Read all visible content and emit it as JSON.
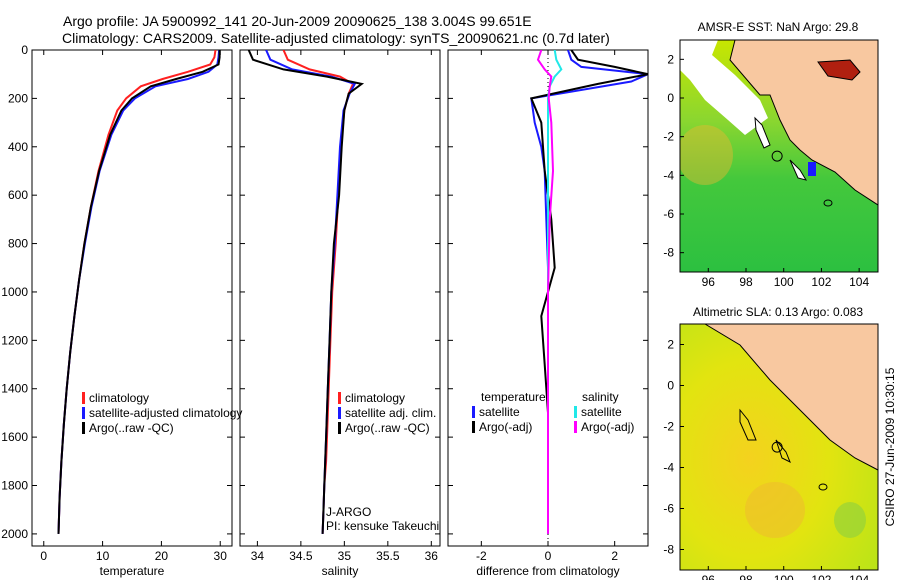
{
  "header": {
    "line1": "Argo profile: JA 5900992_141 20-Jun-2009 20090625_138 3.004S 99.651E",
    "line2": "Climatology: CARS2009. Satellite-adjusted climatology: synTS_20090621.nc (0.7d later)"
  },
  "side_label": "CSIRO 27-Jun-2009 10:30:15",
  "colors": {
    "climatology": "#ff2020",
    "satellite": "#1a1aff",
    "argo": "#000000",
    "sat_diff_s": "#20e8e8",
    "argo_diff_s": "#ff00ff",
    "land": "#f8c8a0",
    "coast": "#000000"
  },
  "chart_data": [
    {
      "id": "temperature",
      "type": "line",
      "xlabel": "temperature",
      "ylabel": "",
      "xlim": [
        -2,
        32
      ],
      "ylim": [
        2050,
        0
      ],
      "xticks": [
        "0",
        "10",
        "20",
        "30"
      ],
      "xtick_values": [
        0,
        10,
        20,
        30
      ],
      "yticks": [
        "0",
        "200",
        "400",
        "600",
        "800",
        "1000",
        "1200",
        "1400",
        "1600",
        "1800",
        "2000"
      ],
      "ytick_values": [
        0,
        200,
        400,
        600,
        800,
        1000,
        1200,
        1400,
        1600,
        1800,
        2000
      ],
      "legend": [
        "climatology",
        "satellite-adjusted climatology",
        "Argo(..raw -QC)"
      ],
      "series": [
        {
          "name": "climatology",
          "color": "#ff2020",
          "x": [
            29.2,
            29.0,
            28.3,
            24.5,
            20.2,
            16.5,
            14.0,
            12.5,
            11.0,
            9.3,
            8.0,
            6.9,
            6.0,
            5.2,
            4.5,
            3.9,
            3.4,
            3.0,
            2.7,
            2.5
          ],
          "y": [
            0,
            30,
            60,
            90,
            120,
            150,
            200,
            250,
            350,
            500,
            650,
            800,
            950,
            1100,
            1250,
            1400,
            1550,
            1700,
            1850,
            2000
          ]
        },
        {
          "name": "satellite-adjusted climatology",
          "color": "#1a1aff",
          "x": [
            29.8,
            29.7,
            29.5,
            28.0,
            24.5,
            19.0,
            15.5,
            13.5,
            11.5,
            9.5,
            8.1,
            7.0,
            6.0,
            5.2,
            4.5,
            3.9,
            3.4,
            3.0,
            2.7,
            2.5
          ],
          "y": [
            0,
            30,
            60,
            90,
            120,
            150,
            200,
            250,
            350,
            500,
            650,
            800,
            950,
            1100,
            1250,
            1400,
            1550,
            1700,
            1850,
            2000
          ]
        },
        {
          "name": "Argo(..raw -QC)",
          "color": "#000000",
          "x": [
            29.9,
            29.9,
            29.7,
            27.0,
            22.5,
            18.2,
            15.0,
            13.2,
            11.3,
            9.4,
            8.0,
            6.9,
            6.0,
            5.2,
            4.5,
            3.9,
            3.4,
            3.0,
            2.7,
            2.5
          ],
          "y": [
            0,
            30,
            60,
            90,
            120,
            150,
            200,
            250,
            350,
            500,
            650,
            800,
            950,
            1100,
            1250,
            1400,
            1550,
            1700,
            1850,
            2000
          ]
        }
      ]
    },
    {
      "id": "salinity",
      "type": "line",
      "xlabel": "salinity",
      "xlim": [
        33.8,
        36.1
      ],
      "ylim": [
        2050,
        0
      ],
      "xticks": [
        "34",
        "34.5",
        "35",
        "35.5",
        "36"
      ],
      "xtick_values": [
        34,
        34.5,
        35,
        35.5,
        36
      ],
      "legend": [
        "climatology",
        "satellite adj. clim.",
        "Argo(..raw -QC)"
      ],
      "annotations": [
        "J-ARGO",
        "PI: kensuke Takeuchi"
      ],
      "series": [
        {
          "name": "climatology",
          "color": "#ff2020",
          "x": [
            34.3,
            34.35,
            34.6,
            34.95,
            35.1,
            35.05,
            35.0,
            34.96,
            34.93,
            34.9,
            34.86,
            34.84,
            34.82,
            34.8,
            34.79,
            34.77,
            34.76,
            34.75
          ],
          "y": [
            0,
            40,
            80,
            110,
            140,
            180,
            250,
            400,
            600,
            800,
            1000,
            1200,
            1400,
            1600,
            1700,
            1800,
            1900,
            2000
          ]
        },
        {
          "name": "satellite adj. clim.",
          "color": "#1a1aff",
          "x": [
            34.1,
            34.15,
            34.4,
            34.85,
            35.12,
            35.06,
            34.99,
            34.95,
            34.92,
            34.89,
            34.85,
            34.83,
            34.81,
            34.79,
            34.78,
            34.77,
            34.76,
            34.75
          ],
          "y": [
            0,
            40,
            80,
            110,
            140,
            180,
            250,
            400,
            600,
            800,
            1000,
            1200,
            1400,
            1600,
            1700,
            1800,
            1900,
            2000
          ]
        },
        {
          "name": "Argo(..raw -QC)",
          "color": "#000000",
          "x": [
            33.9,
            33.95,
            34.3,
            34.8,
            35.2,
            35.05,
            35.0,
            34.97,
            34.94,
            34.88,
            34.85,
            34.83,
            34.81,
            34.79,
            34.78,
            34.77,
            34.76,
            34.75
          ],
          "y": [
            0,
            40,
            80,
            110,
            140,
            180,
            250,
            400,
            600,
            800,
            1000,
            1200,
            1400,
            1600,
            1700,
            1800,
            1900,
            2000
          ]
        }
      ]
    },
    {
      "id": "difference",
      "type": "line",
      "xlabel": "difference from climatology",
      "xlim": [
        -3,
        3
      ],
      "ylim": [
        2050,
        0
      ],
      "xticks": [
        "-2",
        "0",
        "2"
      ],
      "xtick_values": [
        -2,
        0,
        2
      ],
      "legend_temperature_title": "temperature",
      "legend_salinity_title": "salinity",
      "legend_temperature": [
        "satellite",
        "Argo(-adj)"
      ],
      "legend_salinity": [
        "satellite",
        "Argo(-adj)"
      ],
      "series": [
        {
          "name": "temperature satellite",
          "color": "#1a1aff",
          "x": [
            0.6,
            0.7,
            1.0,
            3.0,
            2.5,
            -0.5,
            -0.4,
            -0.2,
            -0.1,
            -0.05,
            0,
            0,
            0,
            0,
            0,
            0
          ],
          "y": [
            0,
            40,
            70,
            100,
            130,
            200,
            300,
            400,
            500,
            700,
            900,
            1100,
            1300,
            1500,
            1800,
            2000
          ]
        },
        {
          "name": "temperature Argo(-adj)",
          "color": "#000000",
          "x": [
            0.7,
            0.9,
            2.0,
            3.0,
            1.5,
            -0.5,
            -0.2,
            -0.15,
            -0.1,
            0.1,
            0.2,
            -0.2,
            -0.1,
            0,
            0,
            0
          ],
          "y": [
            0,
            40,
            70,
            100,
            140,
            200,
            300,
            400,
            500,
            700,
            900,
            1100,
            1300,
            1500,
            1800,
            2000
          ]
        },
        {
          "name": "salinity satellite",
          "color": "#20e8e8",
          "x": [
            0.2,
            0.25,
            0.4,
            0.2,
            0.05,
            0,
            0,
            0,
            0,
            0,
            0,
            0,
            0
          ],
          "y": [
            0,
            40,
            80,
            110,
            150,
            200,
            300,
            500,
            700,
            1000,
            1300,
            1600,
            2000
          ]
        },
        {
          "name": "salinity Argo(-adj)",
          "color": "#ff00ff",
          "x": [
            -0.2,
            -0.3,
            -0.1,
            0.1,
            0.05,
            0.02,
            0.1,
            0.15,
            0.05,
            0,
            0,
            0,
            0
          ],
          "y": [
            0,
            40,
            80,
            110,
            150,
            200,
            300,
            500,
            700,
            1000,
            1300,
            1600,
            2000
          ]
        }
      ]
    },
    {
      "id": "sst_map",
      "type": "heatmap",
      "title": "AMSR-E SST: NaN Argo: 29.8",
      "xlim": [
        94.5,
        105
      ],
      "ylim": [
        -9,
        3
      ],
      "xticks": [
        "96",
        "98",
        "100",
        "102",
        "104"
      ],
      "xtick_values": [
        96,
        98,
        100,
        102,
        104
      ],
      "yticks": [
        "2",
        "0",
        "-2",
        "-4",
        "-6",
        "-8"
      ],
      "ytick_values": [
        2,
        0,
        -2,
        -4,
        -6,
        -8
      ],
      "argo_position": {
        "lon": 99.651,
        "lat": -3.004
      }
    },
    {
      "id": "sla_map",
      "type": "heatmap",
      "title": "Altimetric SLA: 0.13 Argo: 0.083",
      "xlim": [
        94.5,
        105
      ],
      "ylim": [
        -9,
        3
      ],
      "xticks": [
        "96",
        "98",
        "100",
        "102",
        "104"
      ],
      "xtick_values": [
        96,
        98,
        100,
        102,
        104
      ],
      "yticks": [
        "2",
        "0",
        "-2",
        "-4",
        "-6",
        "-8"
      ],
      "ytick_values": [
        2,
        0,
        -2,
        -4,
        -6,
        -8
      ],
      "argo_position": {
        "lon": 99.651,
        "lat": -3.004
      }
    }
  ]
}
